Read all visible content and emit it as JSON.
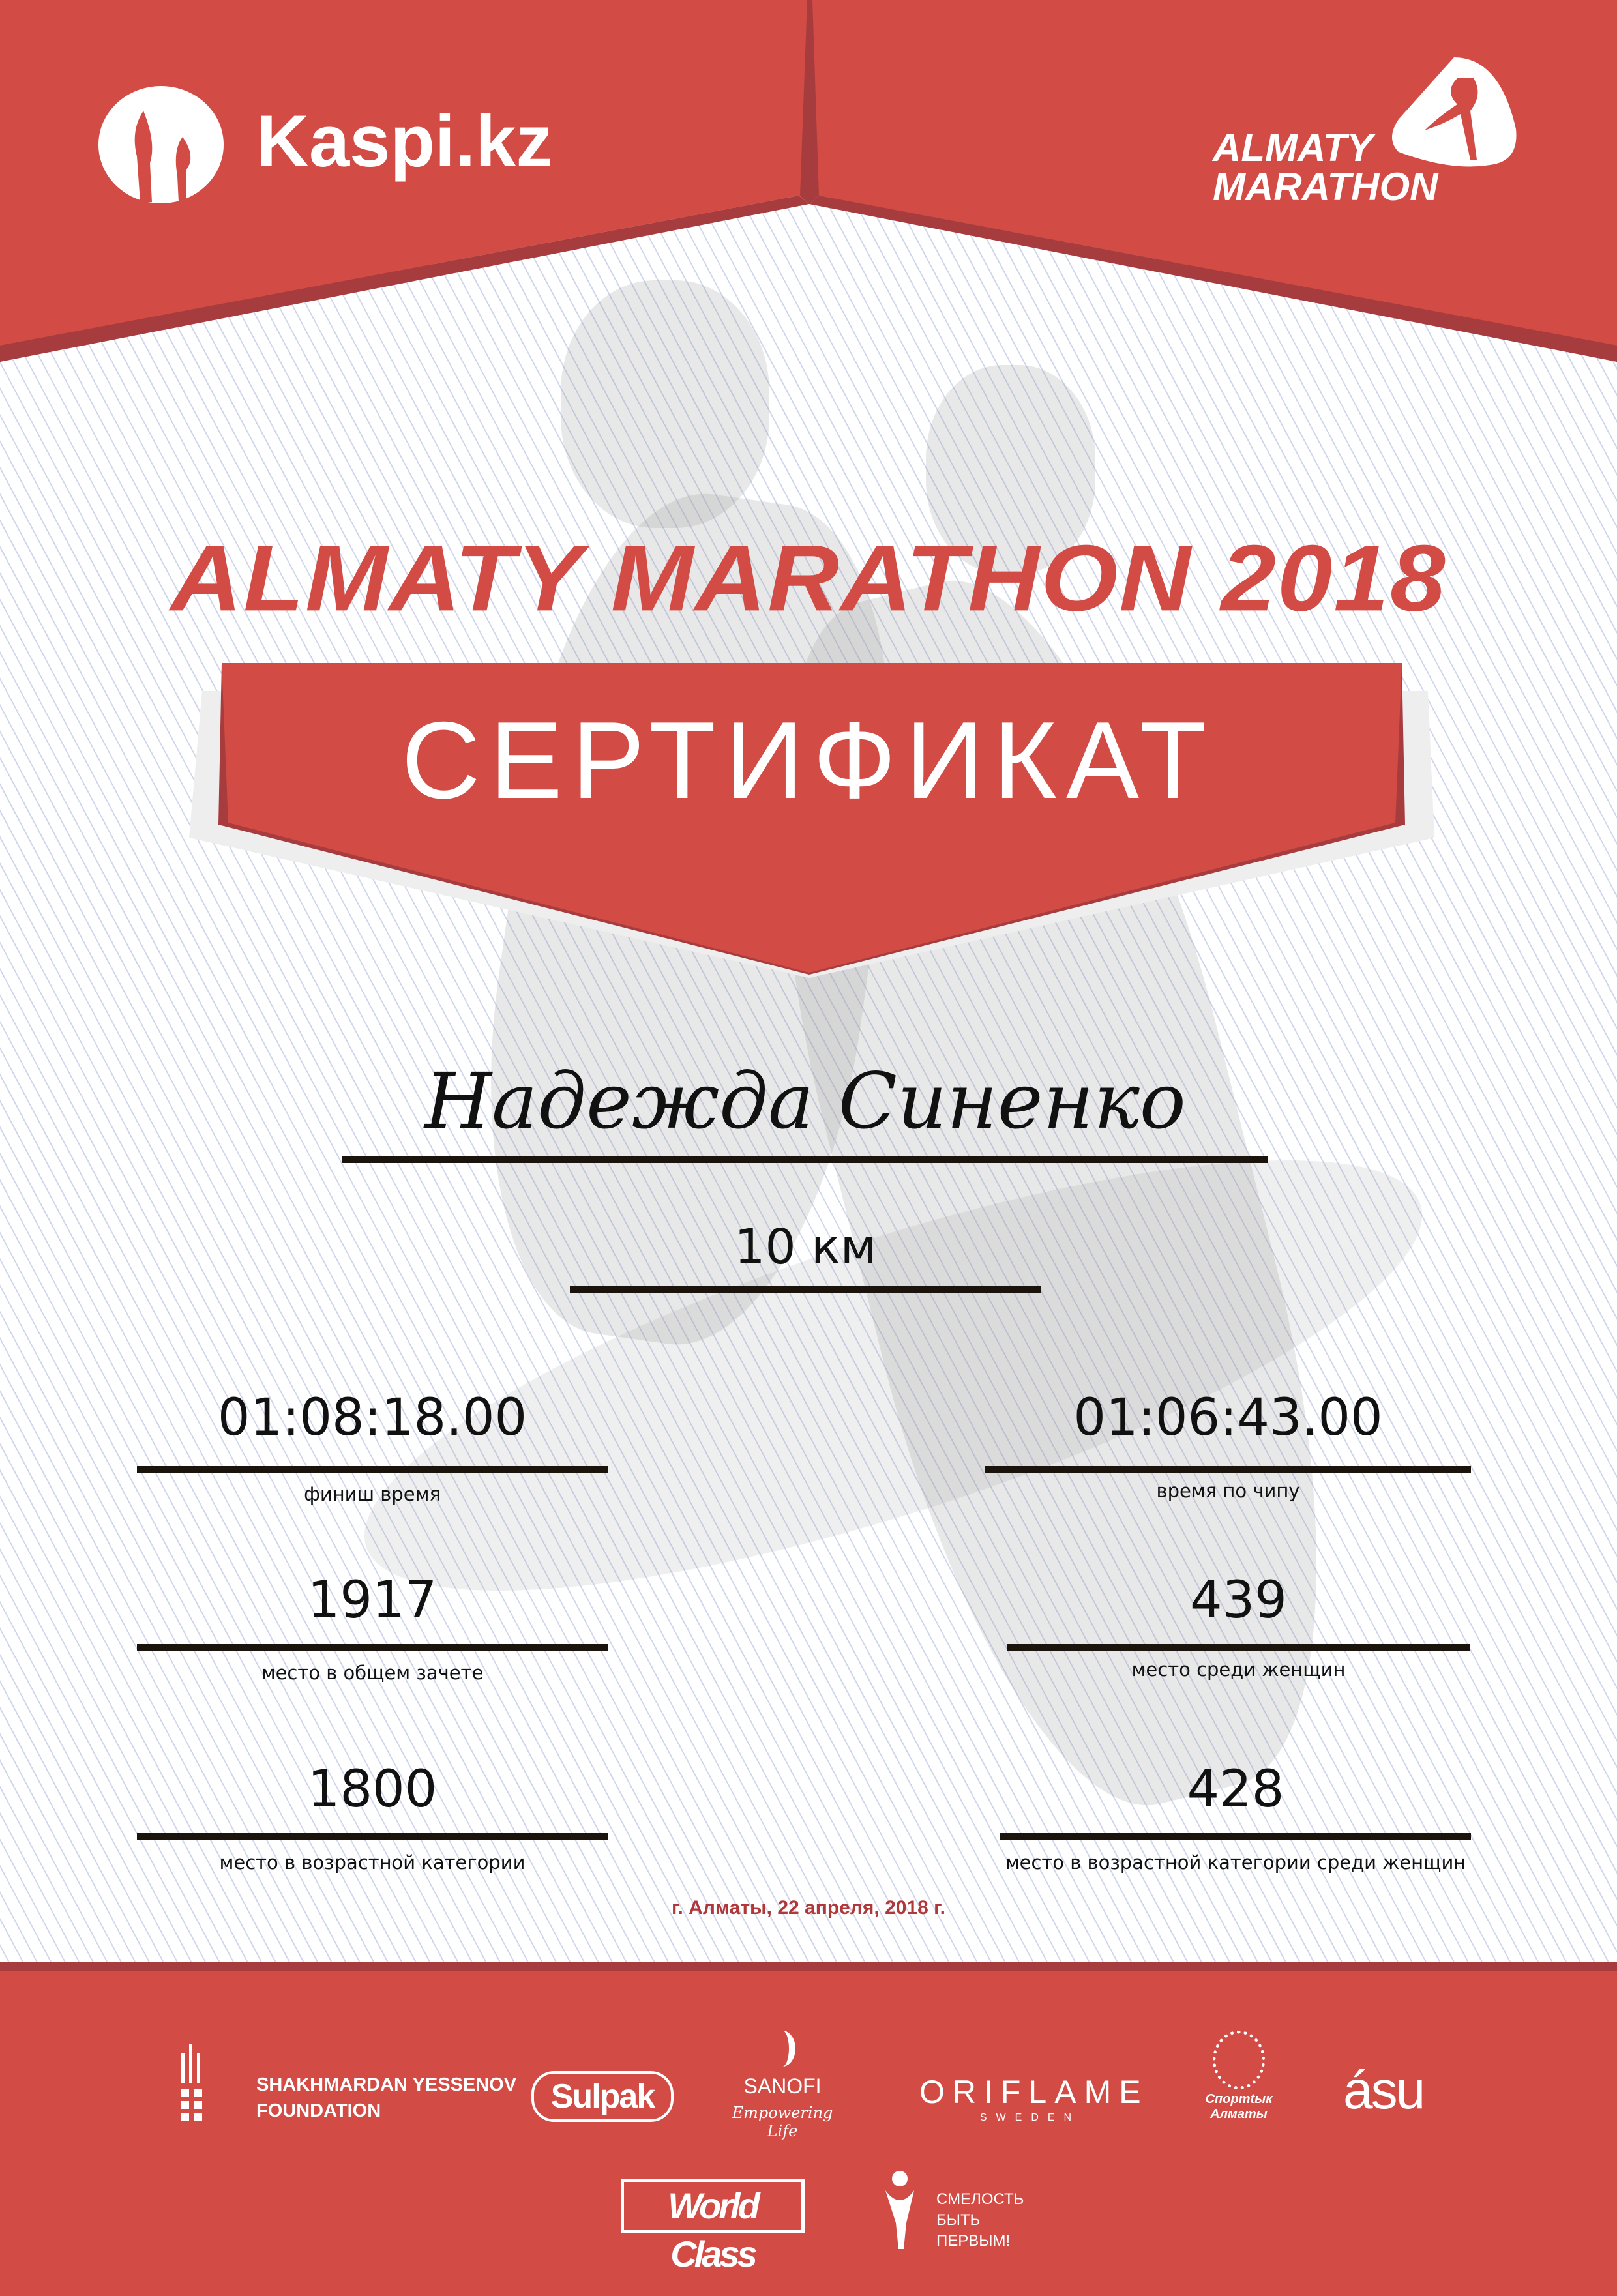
{
  "header": {
    "kaspi_logo": "Kaspi.kz",
    "almaty_logo_line1": "ALMATY",
    "almaty_logo_line2": "MARATHON"
  },
  "title": "ALMATY MARATHON 2018",
  "banner": "СЕРТИФИКАТ",
  "participant_name": "Надежда Синенко",
  "distance": "10 км",
  "results": [
    {
      "value": "01:08:18.00",
      "label": "финиш время"
    },
    {
      "value": "01:06:43.00",
      "label": "время по чипу"
    },
    {
      "value": "1917",
      "label": "место в общем зачете"
    },
    {
      "value": "439",
      "label": "место среди женщин"
    },
    {
      "value": "1800",
      "label": "место в возрастной категории"
    },
    {
      "value": "428",
      "label": "место в возрастной категории среди женщин"
    }
  ],
  "date_place": "г. Алматы, 22 апреля, 2018 г.",
  "sponsors": {
    "yessenov_line1": "SHAKHMARDAN YESSENOV",
    "yessenov_line2": "FOUNDATION",
    "sulpak": "Sulpak",
    "sanofi": "SANOFI",
    "sanofi_tagline": "Empowering Life",
    "oriflame": "ORIFLAME",
    "oriflame_sub": "SWEDEN",
    "sport_almaty": "Спортtык Алматы",
    "asu": "ásu",
    "worldclass": "World Class",
    "fund_line1": "СМЕЛОСТЬ",
    "fund_line2": "БЫТЬ",
    "fund_line3": "ПЕРВЫМ!"
  },
  "colors": {
    "brand_red": "#d34b45",
    "dark_red": "#a73c3e",
    "text": "#111111"
  }
}
